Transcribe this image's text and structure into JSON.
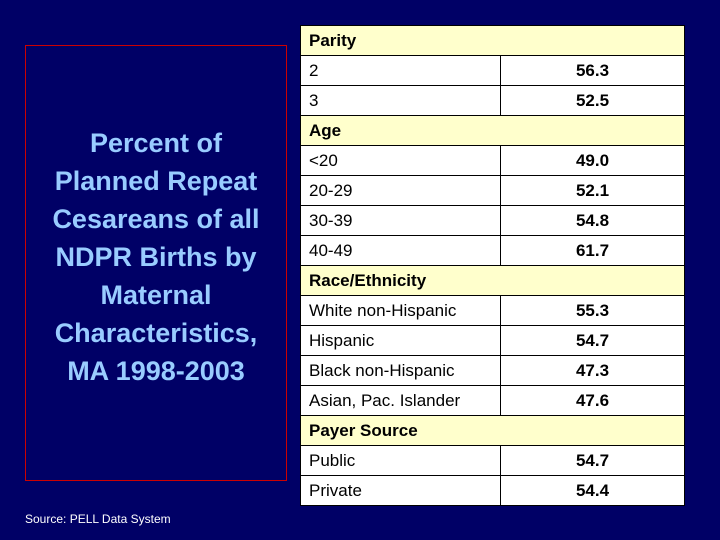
{
  "title": "Percent of Planned Repeat Cesareans of all NDPR Births by Maternal Characteristics, MA 1998-2003",
  "title_lines": [
    "Percent of",
    "Planned Repeat",
    "Cesareans of all",
    "NDPR Births by",
    "Maternal",
    "Characteristics,",
    "MA 1998-2003"
  ],
  "source": "Source: PELL Data System",
  "sections": [
    {
      "heading": "Parity",
      "rows": [
        [
          "2",
          "56.3"
        ],
        [
          "3",
          "52.5"
        ]
      ]
    },
    {
      "heading": "Age",
      "rows": [
        [
          "<20",
          "49.0"
        ],
        [
          "20-29",
          "52.1"
        ],
        [
          "30-39",
          "54.8"
        ],
        [
          "40-49",
          "61.7"
        ]
      ]
    },
    {
      "heading": "Race/Ethnicity",
      "rows": [
        [
          "White non-Hispanic",
          "55.3"
        ],
        [
          "Hispanic",
          "54.7"
        ],
        [
          "Black non-Hispanic",
          "47.3"
        ],
        [
          "Asian, Pac. Islander",
          "47.6"
        ]
      ]
    },
    {
      "heading": "Payer Source",
      "rows": [
        [
          "Public",
          "54.7"
        ],
        [
          "Private",
          "54.4"
        ]
      ]
    }
  ],
  "colors": {
    "background": "#000066",
    "title": "#99ccff",
    "section_bg": "#ffffcc",
    "row_bg": "#ffffff",
    "border": "#cc0000"
  }
}
